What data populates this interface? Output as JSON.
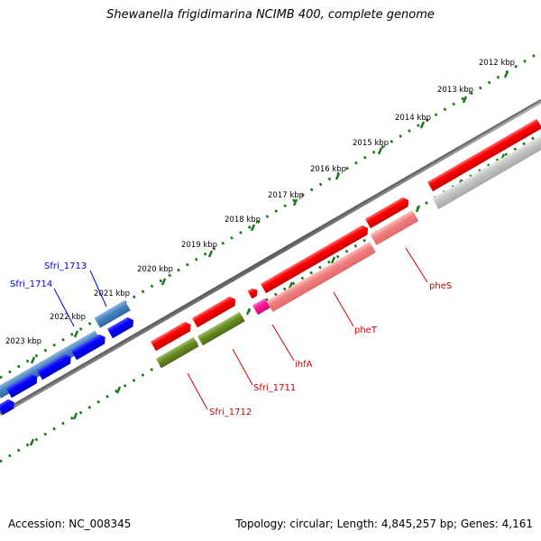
{
  "title": "Shewanella frigidimarina NCIMB 400, complete genome",
  "footer": {
    "accession": "Accession: NC_008345",
    "topology": "Topology: circular; Length: 4,845,257 bp; Genes: 4,161"
  },
  "scale_labels": [
    "2012 kbp",
    "2013 kbp",
    "2014 kbp",
    "2015 kbp",
    "2016 kbp",
    "2017 kbp",
    "2018 kbp",
    "2019 kbp",
    "2020 kbp",
    "2021 kbp",
    "2022 kbp",
    "2023 kbp"
  ],
  "gene_labels": [
    "Sfri_1713",
    "Sfri_1714",
    "pheS",
    "pheT",
    "ihfA",
    "Sfri_1711",
    "Sfri_1712"
  ],
  "colors": {
    "blue_label": "#0000cc",
    "red_label": "#cc0000",
    "tick": "#1a7a1a",
    "backbone": "#777777"
  }
}
